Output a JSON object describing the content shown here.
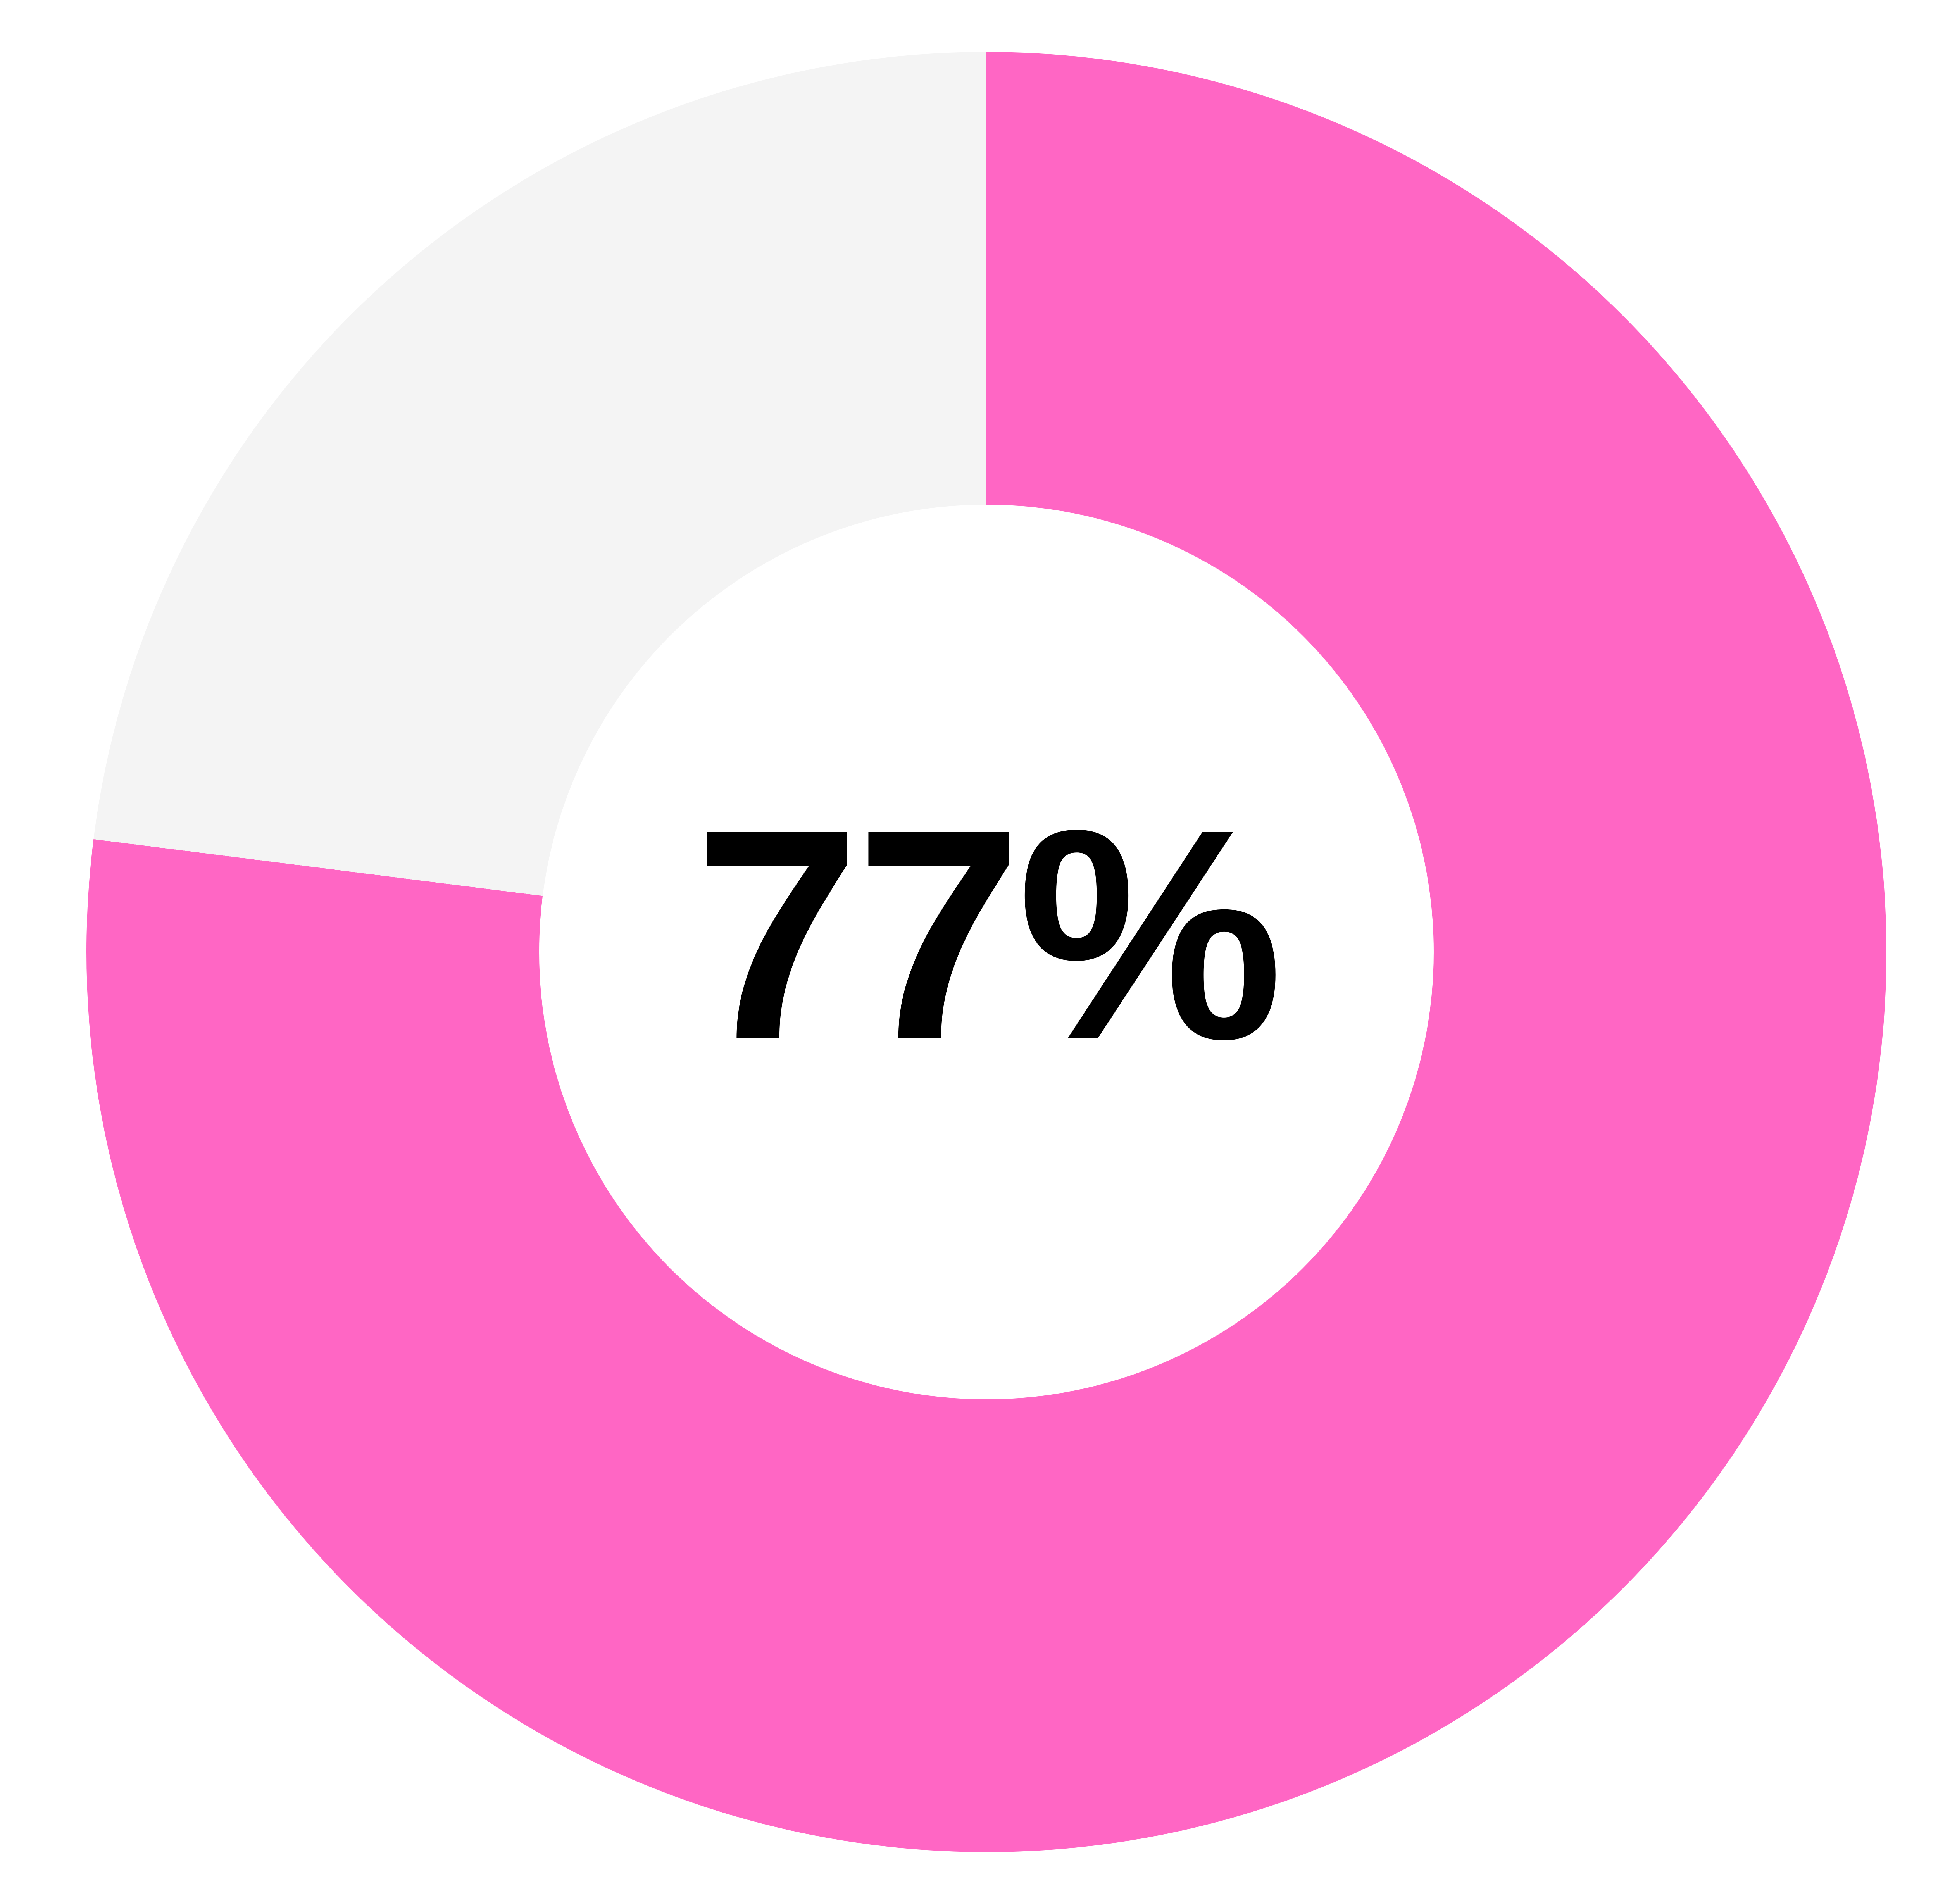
{
  "chart_data": {
    "type": "pie",
    "subtype": "donut",
    "title": "",
    "segments": [
      {
        "value": 77,
        "color": "#FF66C4"
      },
      {
        "value": 23,
        "color": "#F4F4F4"
      }
    ],
    "start_angle_deg": 0,
    "direction": "clockwise",
    "hole_ratio": 0.497,
    "hole_color": "#FFFFFF",
    "center_label": "77%",
    "center_label_color": "#000000",
    "background_color": "#FFFFFF",
    "legend": "none",
    "gridlines": "none"
  }
}
